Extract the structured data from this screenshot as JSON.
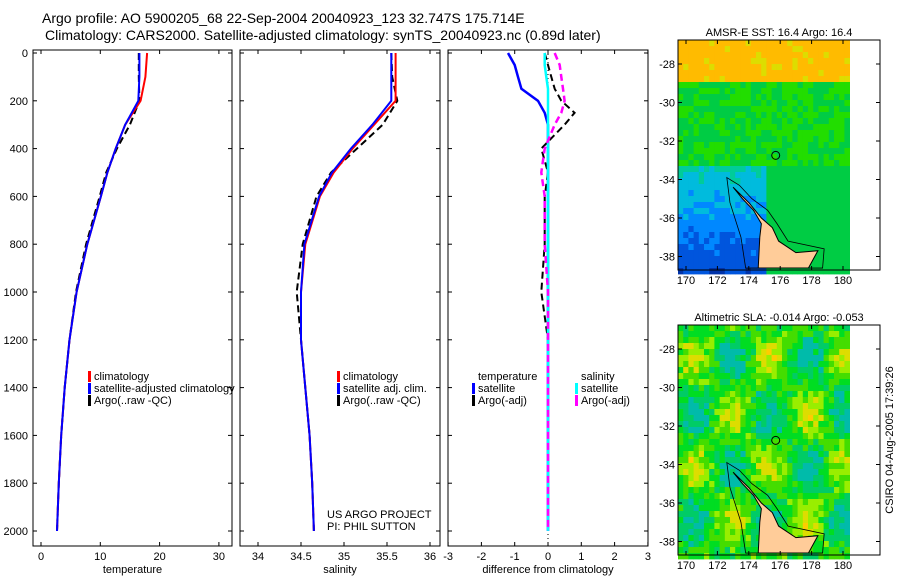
{
  "title_line1": "Argo profile: AO 5900205_68 22-Sep-2004 20040923_123 32.747S 175.714E",
  "title_line2": "Climatology: CARS2000. Satellite-adjusted climatology: synTS_20040923.nc (0.89d later)",
  "colors": {
    "climatology": "#ff0000",
    "satellite": "#0000ff",
    "argo": "#000000",
    "sal_sat": "#00ffff",
    "sal_argo": "#ff00ff",
    "land": "#ffcc99"
  },
  "chart_data": [
    {
      "type": "line",
      "name": "temperature",
      "xlabel": "temperature",
      "xlim": [
        -1,
        31
      ],
      "ylim": [
        0,
        2050
      ],
      "xticks": [
        "0",
        "10",
        "20",
        "30"
      ],
      "yticks": [
        "0",
        "200",
        "400",
        "600",
        "800",
        "1000",
        "1200",
        "1400",
        "1600",
        "1800",
        "2000"
      ],
      "legend": [
        "climatology",
        "satellite-adjusted climatology",
        "Argo(..raw -QC)"
      ],
      "depth": [
        0,
        100,
        200,
        300,
        400,
        500,
        600,
        800,
        1000,
        1200,
        1400,
        1600,
        1800,
        2000
      ],
      "series": [
        {
          "name": "climatology",
          "values": [
            17.9,
            17.6,
            16.8,
            14.2,
            12.6,
            11.2,
            10.1,
            7.8,
            6.0,
            4.8,
            4.0,
            3.4,
            3.0,
            2.7
          ]
        },
        {
          "name": "satellite-adjusted climatology",
          "values": [
            16.6,
            16.6,
            16.4,
            14.2,
            12.6,
            11.2,
            10.1,
            7.8,
            6.0,
            4.8,
            4.0,
            3.4,
            3.0,
            2.7
          ]
        },
        {
          "name": "Argo(..raw -QC)",
          "values": [
            16.5,
            16.5,
            16.6,
            15.0,
            12.8,
            11.0,
            9.9,
            7.6,
            5.9,
            4.8,
            4.0,
            3.4,
            3.0,
            2.7
          ]
        }
      ]
    },
    {
      "type": "line",
      "name": "salinity",
      "xlabel": "salinity",
      "xlim": [
        33.8,
        36.1
      ],
      "ylim": [
        0,
        2050
      ],
      "xticks": [
        "34",
        "34.5",
        "35",
        "35.5",
        "36"
      ],
      "legend": [
        "climatology",
        "satellite adj. clim.",
        "Argo(..raw -QC)"
      ],
      "annotation": [
        "US ARGO PROJECT",
        "PI: PHIL SUTTON"
      ],
      "depth": [
        0,
        100,
        200,
        300,
        400,
        500,
        600,
        800,
        1000,
        1200,
        1400,
        1600,
        1800,
        2000
      ],
      "series": [
        {
          "name": "climatology",
          "values": [
            35.6,
            35.6,
            35.6,
            35.35,
            35.1,
            34.88,
            34.72,
            34.55,
            34.5,
            34.5,
            34.55,
            34.6,
            34.63,
            34.65
          ]
        },
        {
          "name": "satellite adj. clim.",
          "values": [
            35.55,
            35.55,
            35.55,
            35.33,
            35.08,
            34.86,
            34.71,
            34.54,
            34.5,
            34.5,
            34.55,
            34.6,
            34.63,
            34.65
          ]
        },
        {
          "name": "Argo(..raw -QC)",
          "values": [
            35.55,
            35.56,
            35.62,
            35.45,
            35.15,
            34.85,
            34.68,
            34.52,
            34.45,
            34.5,
            34.55,
            34.6,
            34.63,
            34.65
          ]
        }
      ]
    },
    {
      "type": "line",
      "name": "difference",
      "xlabel": "difference from climatology",
      "xlim": [
        -3,
        3
      ],
      "ylim": [
        0,
        2050
      ],
      "xticks": [
        "-3",
        "-2",
        "-1",
        "0",
        "1",
        "2",
        "3"
      ],
      "legend": [
        "temperature",
        "satellite",
        "Argo(-adj)",
        "salinity",
        "satellite",
        "Argo(-adj)"
      ],
      "depth": [
        0,
        50,
        100,
        150,
        200,
        250,
        300,
        400,
        500,
        600,
        800,
        1000,
        1200,
        1400,
        1600,
        1800,
        2000
      ],
      "series": [
        {
          "name": "temperature satellite",
          "values": [
            -1.2,
            -1.0,
            -0.9,
            -0.8,
            -0.3,
            -0.1,
            0,
            0,
            0,
            0,
            0,
            0,
            0,
            0,
            0,
            0,
            0
          ]
        },
        {
          "name": "temperature Argo(-adj)",
          "values": [
            -0.1,
            0,
            0.1,
            0.2,
            0.4,
            0.8,
            0.5,
            -0.2,
            0,
            -0.1,
            -0.1,
            -0.2,
            0,
            0,
            0,
            0,
            0
          ]
        },
        {
          "name": "salinity satellite",
          "values": [
            -0.1,
            -0.1,
            -0.05,
            0,
            0,
            0,
            0,
            0,
            0,
            0,
            0,
            0,
            0,
            0,
            0,
            0,
            0
          ]
        },
        {
          "name": "salinity Argo(-adj)",
          "values": [
            0.2,
            0.35,
            0.4,
            0.45,
            0.5,
            0.4,
            0.2,
            -0.1,
            -0.2,
            -0.1,
            -0.1,
            0,
            0,
            0,
            0,
            0,
            0
          ]
        }
      ]
    },
    {
      "type": "heatmap",
      "name": "sst-map",
      "title": "AMSR-E SST: 16.4 Argo: 16.4",
      "xticks": [
        "170",
        "172",
        "174",
        "176",
        "178",
        "180"
      ],
      "yticks": [
        "-28",
        "-30",
        "-32",
        "-34",
        "-36",
        "-38"
      ],
      "float_position": {
        "lon": 175.714,
        "lat": -32.747
      }
    },
    {
      "type": "heatmap",
      "name": "sla-map",
      "title": "Altimetric SLA: -0.014 Argo: -0.053",
      "xticks": [
        "170",
        "172",
        "174",
        "176",
        "178",
        "180"
      ],
      "yticks": [
        "-28",
        "-30",
        "-32",
        "-34",
        "-36",
        "-38"
      ],
      "float_position": {
        "lon": 175.714,
        "lat": -32.747
      }
    }
  ],
  "credit": "CSIRO 04-Aug-2005 17:39:26"
}
